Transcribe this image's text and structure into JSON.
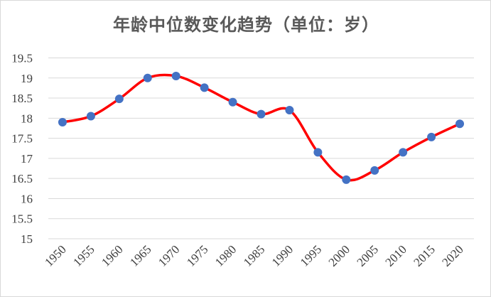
{
  "chart_data": {
    "type": "line",
    "title": "年龄中位数变化趋势（单位：岁）",
    "xlabel": "",
    "ylabel": "",
    "x": [
      "1950",
      "1955",
      "1960",
      "1965",
      "1970",
      "1975",
      "1980",
      "1985",
      "1990",
      "1995",
      "2000",
      "2005",
      "2010",
      "2015",
      "2020"
    ],
    "y_ticks": [
      "15",
      "15.5",
      "16",
      "16.5",
      "17",
      "17.5",
      "18",
      "18.5",
      "19",
      "19.5"
    ],
    "ylim": [
      15,
      19.5
    ],
    "series": [
      {
        "values": [
          17.9,
          18.05,
          18.48,
          19.0,
          19.05,
          18.76,
          18.4,
          18.1,
          18.2,
          17.15,
          16.47,
          16.7,
          17.15,
          17.53,
          17.86
        ]
      }
    ],
    "line_color": "#ff0000",
    "marker_color": "#4472c4",
    "grid": true,
    "grid_color": "#d9d9d9",
    "legend": "none",
    "smooth": true
  }
}
